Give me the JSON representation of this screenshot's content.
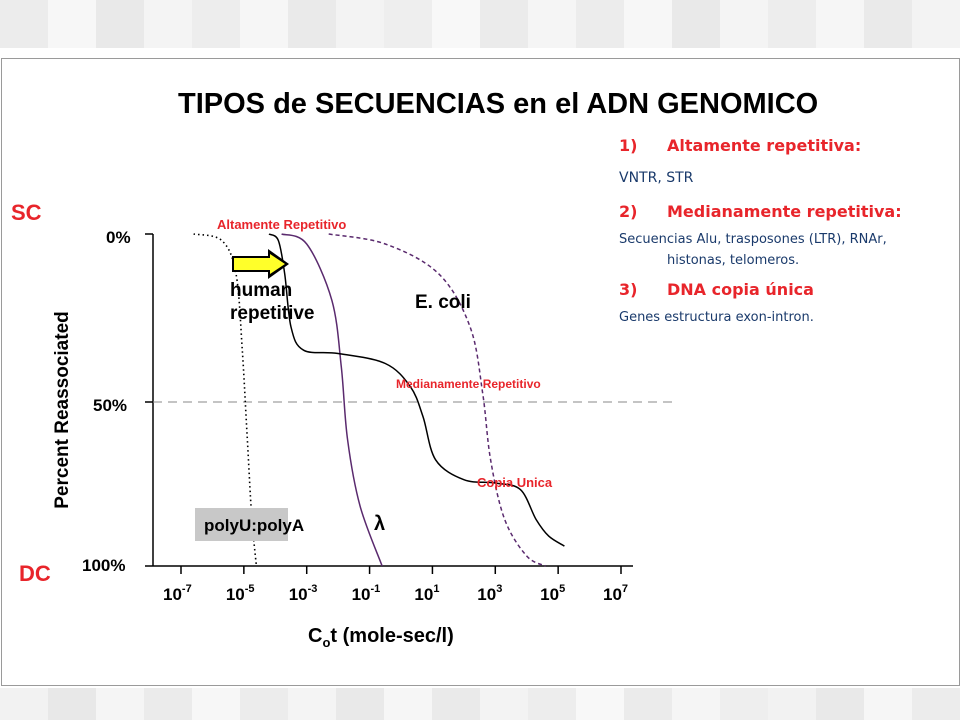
{
  "slide": {
    "title": "TIPOS de SECUENCIAS en el ADN GENOMICO",
    "sc_label": "SC",
    "dc_label": "DC",
    "colors": {
      "accent": "#e8252b",
      "text_blue": "#1a3a6b",
      "purple": "#5a2a6e"
    }
  },
  "types_list": [
    {
      "number": "1)",
      "title": "Altamente repetitiva:",
      "detail": "VNTR, STR"
    },
    {
      "number": "2)",
      "title": "Medianamente repetitiva:",
      "detail": "Secuencias Alu, trasposones (LTR), RNAr,",
      "detail2": "histonas, telomeros."
    },
    {
      "number": "3)",
      "title": "DNA copia única",
      "detail": "Genes estructura exon-intron."
    }
  ],
  "chart_data": {
    "type": "line",
    "title": "",
    "xlabel_main": "C",
    "xlabel_sub": "o",
    "xlabel_rest": "t (mole-sec/l)",
    "ylabel": "Percent Reassociated",
    "x_scale": "log10",
    "xlim_log10": [
      -7,
      7
    ],
    "ylim": [
      0,
      100
    ],
    "y_inverted": true,
    "x_ticks": [
      {
        "base": "10",
        "exp": "-7",
        "value": -7
      },
      {
        "base": "10",
        "exp": "-5",
        "value": -5
      },
      {
        "base": "10",
        "exp": "-3",
        "value": -3
      },
      {
        "base": "10",
        "exp": "-1",
        "value": -1
      },
      {
        "base": "10",
        "exp": "1",
        "value": 1
      },
      {
        "base": "10",
        "exp": "3",
        "value": 3
      },
      {
        "base": "10",
        "exp": "5",
        "value": 5
      },
      {
        "base": "10",
        "exp": "7",
        "value": 7
      }
    ],
    "y_ticks": [
      {
        "label": "0%",
        "value": 0
      },
      {
        "label": "50%",
        "value": 50
      },
      {
        "label": "100%",
        "value": 100
      }
    ],
    "reference_line": {
      "y": 50,
      "style": "dashed"
    },
    "series": [
      {
        "name": "polyU:polyA",
        "style": "dotted",
        "color": "#000000",
        "points": [
          [
            -6.6,
            0
          ],
          [
            -5.7,
            2
          ],
          [
            -5.25,
            12
          ],
          [
            -5.05,
            35
          ],
          [
            -4.9,
            60
          ],
          [
            -4.75,
            85
          ],
          [
            -4.6,
            100
          ]
        ]
      },
      {
        "name": "λ",
        "style": "solid",
        "color": "#5a2a6e",
        "points": [
          [
            -3.8,
            0
          ],
          [
            -3.0,
            3
          ],
          [
            -2.2,
            20
          ],
          [
            -1.9,
            40
          ],
          [
            -1.7,
            62
          ],
          [
            -1.3,
            82
          ],
          [
            -0.6,
            100
          ]
        ]
      },
      {
        "name": "E. coli",
        "style": "dashed",
        "color": "#5a2a6e",
        "points": [
          [
            -2.3,
            0
          ],
          [
            -0.5,
            3
          ],
          [
            1.2,
            12
          ],
          [
            2.2,
            28
          ],
          [
            2.6,
            48
          ],
          [
            2.85,
            68
          ],
          [
            3.3,
            86
          ],
          [
            4.0,
            97
          ],
          [
            4.6,
            100
          ]
        ]
      },
      {
        "name": "human repetitive",
        "style": "solid",
        "color": "#000000",
        "points": [
          [
            -4.2,
            0
          ],
          [
            -3.9,
            2
          ],
          [
            -3.7,
            12
          ],
          [
            -3.5,
            28
          ],
          [
            -3.1,
            35
          ],
          [
            -2.0,
            36
          ],
          [
            -0.5,
            39
          ],
          [
            0.3,
            46
          ],
          [
            0.7,
            55
          ],
          [
            1.1,
            68
          ],
          [
            2.0,
            74
          ],
          [
            3.0,
            75
          ],
          [
            3.8,
            77
          ],
          [
            4.3,
            86
          ],
          [
            4.7,
            91
          ],
          [
            5.2,
            94
          ]
        ]
      }
    ],
    "annotations": [
      {
        "text": "Altamente Repetitivo",
        "color": "#e8252b"
      },
      {
        "text": "Medianamente Repetitivo",
        "color": "#e8252b"
      },
      {
        "text": "Copia Unica",
        "color": "#e8252b"
      }
    ],
    "curve_labels": {
      "human": "human",
      "repetitive": "repetitive",
      "ecoli": "E. coli",
      "lambda": "λ",
      "polyU": "polyU:polyA"
    }
  }
}
